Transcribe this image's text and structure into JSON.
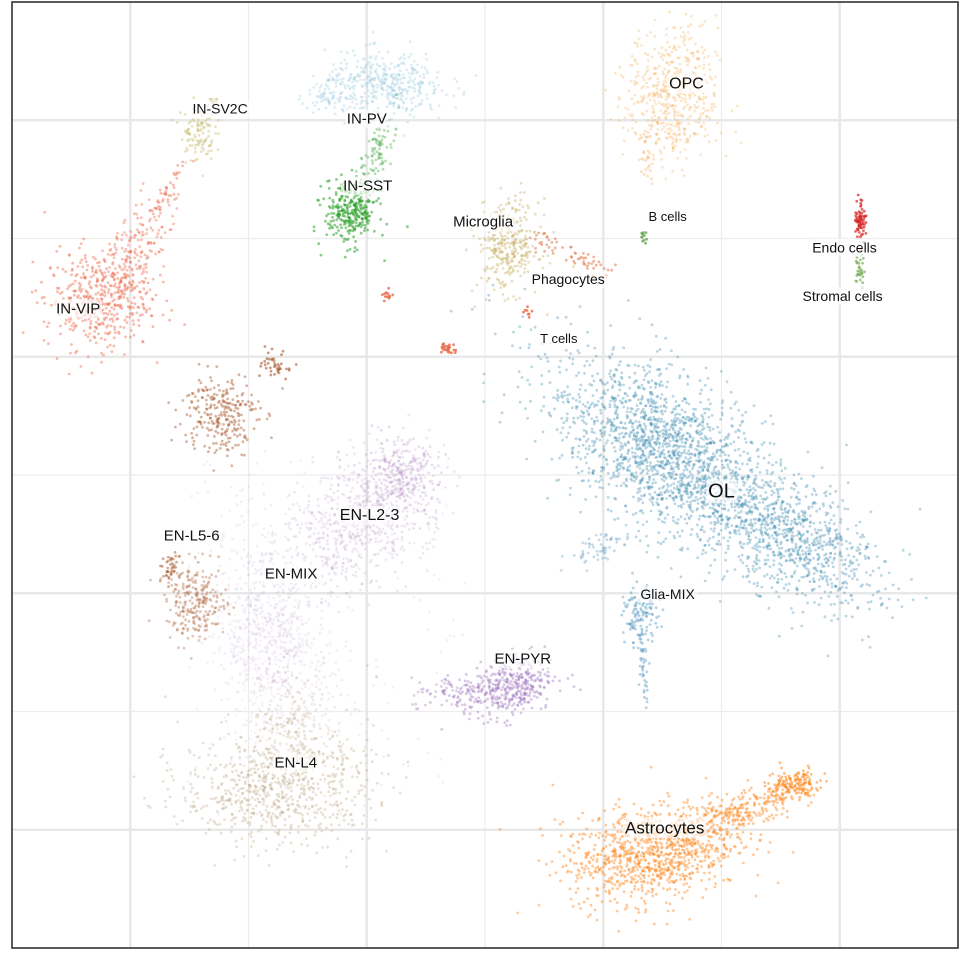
{
  "chart_data": {
    "type": "scatter",
    "title": "",
    "xlabel": "",
    "ylabel": "",
    "xlim": [
      0,
      100
    ],
    "ylim": [
      0,
      100
    ],
    "grid": true,
    "legend": "none",
    "clusters": [
      {
        "name": "OL",
        "color": "#3a8ab0",
        "label_size": 20,
        "label_xy": [
          75.0,
          48.2
        ],
        "blobs": [
          {
            "x": 72,
            "y": 50,
            "sx": 9.5,
            "sy": 3.6,
            "rot": -35,
            "n": 1700,
            "a": 0.35
          },
          {
            "x": 68,
            "y": 54,
            "sx": 4.5,
            "sy": 3.2,
            "rot": -35,
            "n": 500,
            "a": 0.35
          },
          {
            "x": 83,
            "y": 43,
            "sx": 5.0,
            "sy": 2.2,
            "rot": -30,
            "n": 500,
            "a": 0.35
          }
        ]
      },
      {
        "name": "OPC",
        "color": "#f4a444",
        "label_size": 16,
        "label_xy": [
          71.3,
          91.3
        ],
        "blobs": [
          {
            "x": 69.8,
            "y": 90.0,
            "sx": 2.4,
            "sy": 3.6,
            "rot": 0,
            "n": 520,
            "a": 0.28
          },
          {
            "x": 67.0,
            "y": 83.5,
            "sx": 0.4,
            "sy": 1.6,
            "rot": 0,
            "n": 25,
            "a": 0.35
          }
        ]
      },
      {
        "name": "Astrocytes",
        "color": "#fe8a22",
        "label_size": 17,
        "label_xy": [
          69.0,
          12.6
        ],
        "blobs": [
          {
            "x": 67.5,
            "y": 10.0,
            "sx": 4.5,
            "sy": 2.5,
            "rot": 10,
            "n": 950,
            "a": 0.45
          },
          {
            "x": 76.0,
            "y": 14.0,
            "sx": 3.5,
            "sy": 1.1,
            "rot": 18,
            "n": 300,
            "a": 0.45
          },
          {
            "x": 82.5,
            "y": 17.2,
            "sx": 1.6,
            "sy": 0.8,
            "rot": 15,
            "n": 160,
            "a": 0.55
          }
        ]
      },
      {
        "name": "Microglia",
        "color": "#c8b066",
        "label_size": 15,
        "label_xy": [
          49.8,
          76.7
        ],
        "blobs": [
          {
            "x": 52.5,
            "y": 74.2,
            "sx": 1.6,
            "sy": 2.4,
            "rot": 0,
            "n": 320,
            "a": 0.4
          }
        ]
      },
      {
        "name": "EN-L2-3",
        "color": "#b593c6",
        "label_size": 16,
        "label_xy": [
          37.8,
          45.7
        ],
        "blobs": [
          {
            "x": 37.0,
            "y": 45.5,
            "sx": 4.5,
            "sy": 3.0,
            "rot": 45,
            "n": 700,
            "a": 0.22
          },
          {
            "x": 41.0,
            "y": 49.5,
            "sx": 2.0,
            "sy": 2.0,
            "rot": 0,
            "n": 250,
            "a": 0.3
          },
          {
            "x": 28.0,
            "y": 34.0,
            "sx": 3.0,
            "sy": 5.5,
            "rot": 15,
            "n": 550,
            "a": 0.16
          }
        ]
      },
      {
        "name": "EN-MIX",
        "color": "#c9a9d3",
        "label_size": 15,
        "label_xy": [
          29.5,
          39.5
        ],
        "blobs": [
          {
            "x": 26.5,
            "y": 30.0,
            "sx": 2.5,
            "sy": 4.0,
            "rot": 10,
            "n": 250,
            "a": 0.15
          }
        ]
      },
      {
        "name": "EN-L5-6",
        "color": "#a85a2e",
        "label_size": 15,
        "label_xy": [
          19.0,
          43.5
        ],
        "blobs": [
          {
            "x": 19.5,
            "y": 36.5,
            "sx": 1.6,
            "sy": 2.0,
            "rot": 0,
            "n": 240,
            "a": 0.35
          },
          {
            "x": 16.5,
            "y": 40.2,
            "sx": 0.6,
            "sy": 0.7,
            "rot": 0,
            "n": 40,
            "a": 0.5
          },
          {
            "x": 22.0,
            "y": 56.5,
            "sx": 2.0,
            "sy": 2.2,
            "rot": 0,
            "n": 260,
            "a": 0.45
          },
          {
            "x": 28.0,
            "y": 61.5,
            "sx": 0.8,
            "sy": 0.7,
            "rot": 0,
            "n": 40,
            "a": 0.6
          }
        ]
      },
      {
        "name": "EN-L4",
        "color": "#b59a73",
        "label_size": 15,
        "label_xy": [
          30.0,
          19.5
        ],
        "blobs": [
          {
            "x": 28.0,
            "y": 17.0,
            "sx": 5.0,
            "sy": 3.0,
            "rot": 0,
            "n": 750,
            "a": 0.3
          },
          {
            "x": 30.0,
            "y": 23.5,
            "sx": 2.5,
            "sy": 2.5,
            "rot": 0,
            "n": 180,
            "a": 0.2
          }
        ]
      },
      {
        "name": "EN-PYR",
        "color": "#9d74bd",
        "label_size": 15,
        "label_xy": [
          54.0,
          30.5
        ],
        "blobs": [
          {
            "x": 52.5,
            "y": 27.5,
            "sx": 2.4,
            "sy": 1.6,
            "rot": 15,
            "n": 400,
            "a": 0.4
          },
          {
            "x": 47.0,
            "y": 27.0,
            "sx": 2.5,
            "sy": 0.8,
            "rot": 0,
            "n": 80,
            "a": 0.35
          }
        ]
      },
      {
        "name": "IN-VIP",
        "color": "#ee6a4c",
        "label_size": 15,
        "label_xy": [
          7.0,
          67.5
        ],
        "blobs": [
          {
            "x": 9.0,
            "y": 68.5,
            "sx": 2.8,
            "sy": 2.6,
            "rot": 0,
            "n": 420,
            "a": 0.45
          },
          {
            "x": 13.0,
            "y": 73.5,
            "sx": 1.4,
            "sy": 3.2,
            "rot": -30,
            "n": 200,
            "a": 0.4
          },
          {
            "x": 16.5,
            "y": 80.0,
            "sx": 0.4,
            "sy": 1.6,
            "rot": -30,
            "n": 40,
            "a": 0.45
          }
        ]
      },
      {
        "name": "IN-SV2C",
        "color": "#cbc07a",
        "label_size": 14,
        "label_xy": [
          22.0,
          88.6
        ],
        "blobs": [
          {
            "x": 19.6,
            "y": 86.2,
            "sx": 0.9,
            "sy": 1.5,
            "rot": 0,
            "n": 110,
            "a": 0.45
          },
          {
            "x": 21.2,
            "y": 89.5,
            "sx": 0.3,
            "sy": 0.4,
            "rot": 0,
            "n": 15,
            "a": 0.6
          }
        ]
      },
      {
        "name": "IN-PV",
        "color": "#9ecbe0",
        "label_size": 15,
        "label_xy": [
          37.5,
          87.6
        ],
        "blobs": [
          {
            "x": 39.5,
            "y": 91.2,
            "sx": 3.2,
            "sy": 1.7,
            "rot": 0,
            "n": 420,
            "a": 0.35
          },
          {
            "x": 33.5,
            "y": 90.2,
            "sx": 1.1,
            "sy": 0.8,
            "rot": 0,
            "n": 60,
            "a": 0.35
          }
        ]
      },
      {
        "name": "IN-SST",
        "color": "#2ca02c",
        "label_size": 15,
        "label_xy": [
          37.6,
          80.5
        ],
        "blobs": [
          {
            "x": 35.8,
            "y": 77.8,
            "sx": 1.4,
            "sy": 1.7,
            "rot": 0,
            "n": 300,
            "a": 0.55
          },
          {
            "x": 38.5,
            "y": 84.0,
            "sx": 0.7,
            "sy": 2.4,
            "rot": -18,
            "n": 90,
            "a": 0.35
          }
        ]
      },
      {
        "name": "Glia-MIX",
        "color": "#5b9cc4",
        "label_size": 14,
        "label_xy": [
          69.3,
          37.3
        ],
        "blobs": [
          {
            "x": 66.5,
            "y": 35.0,
            "sx": 0.9,
            "sy": 1.5,
            "rot": 0,
            "n": 130,
            "a": 0.45
          },
          {
            "x": 66.8,
            "y": 30.0,
            "sx": 0.3,
            "sy": 2.0,
            "rot": 0,
            "n": 40,
            "a": 0.45
          },
          {
            "x": 62.5,
            "y": 42.5,
            "sx": 2.0,
            "sy": 0.7,
            "rot": 25,
            "n": 60,
            "a": 0.35
          }
        ]
      },
      {
        "name": "Phagocytes",
        "color": "#e2845a",
        "label_size": 14,
        "label_xy": [
          58.8,
          70.6
        ],
        "blobs": [
          {
            "x": 61.0,
            "y": 72.5,
            "sx": 1.5,
            "sy": 0.5,
            "rot": -25,
            "n": 35,
            "a": 0.6
          },
          {
            "x": 56.5,
            "y": 74.5,
            "sx": 1.0,
            "sy": 0.5,
            "rot": -25,
            "n": 25,
            "a": 0.6
          }
        ]
      },
      {
        "name": "B cells",
        "color": "#6ea85a",
        "label_size": 13,
        "label_xy": [
          69.3,
          77.2
        ],
        "blobs": [
          {
            "x": 66.8,
            "y": 75.2,
            "sx": 0.25,
            "sy": 0.3,
            "rot": 0,
            "n": 12,
            "a": 0.8
          }
        ]
      },
      {
        "name": "T cells",
        "color": "#e66a4a",
        "label_size": 13,
        "label_xy": [
          57.8,
          64.3
        ],
        "blobs": [
          {
            "x": 54.5,
            "y": 67.3,
            "sx": 0.25,
            "sy": 0.25,
            "rot": 0,
            "n": 8,
            "a": 0.8
          },
          {
            "x": 39.8,
            "y": 69.0,
            "sx": 0.3,
            "sy": 0.4,
            "rot": 0,
            "n": 12,
            "a": 0.8
          },
          {
            "x": 46.0,
            "y": 63.5,
            "sx": 0.4,
            "sy": 0.35,
            "rot": 0,
            "n": 25,
            "a": 0.8
          }
        ]
      },
      {
        "name": "Endo cells",
        "color": "#d62728",
        "label_size": 14,
        "label_xy": [
          88.0,
          73.9
        ],
        "blobs": [
          {
            "x": 89.7,
            "y": 77.0,
            "sx": 0.3,
            "sy": 1.1,
            "rot": 0,
            "n": 70,
            "a": 0.7
          }
        ]
      },
      {
        "name": "Stromal cells",
        "color": "#7bb05e",
        "label_size": 14,
        "label_xy": [
          87.8,
          68.8
        ],
        "blobs": [
          {
            "x": 89.6,
            "y": 71.5,
            "sx": 0.25,
            "sy": 0.9,
            "rot": 0,
            "n": 30,
            "a": 0.7
          }
        ]
      }
    ],
    "scatter_noise": {
      "color": "#b593c6",
      "n": 180
    }
  }
}
